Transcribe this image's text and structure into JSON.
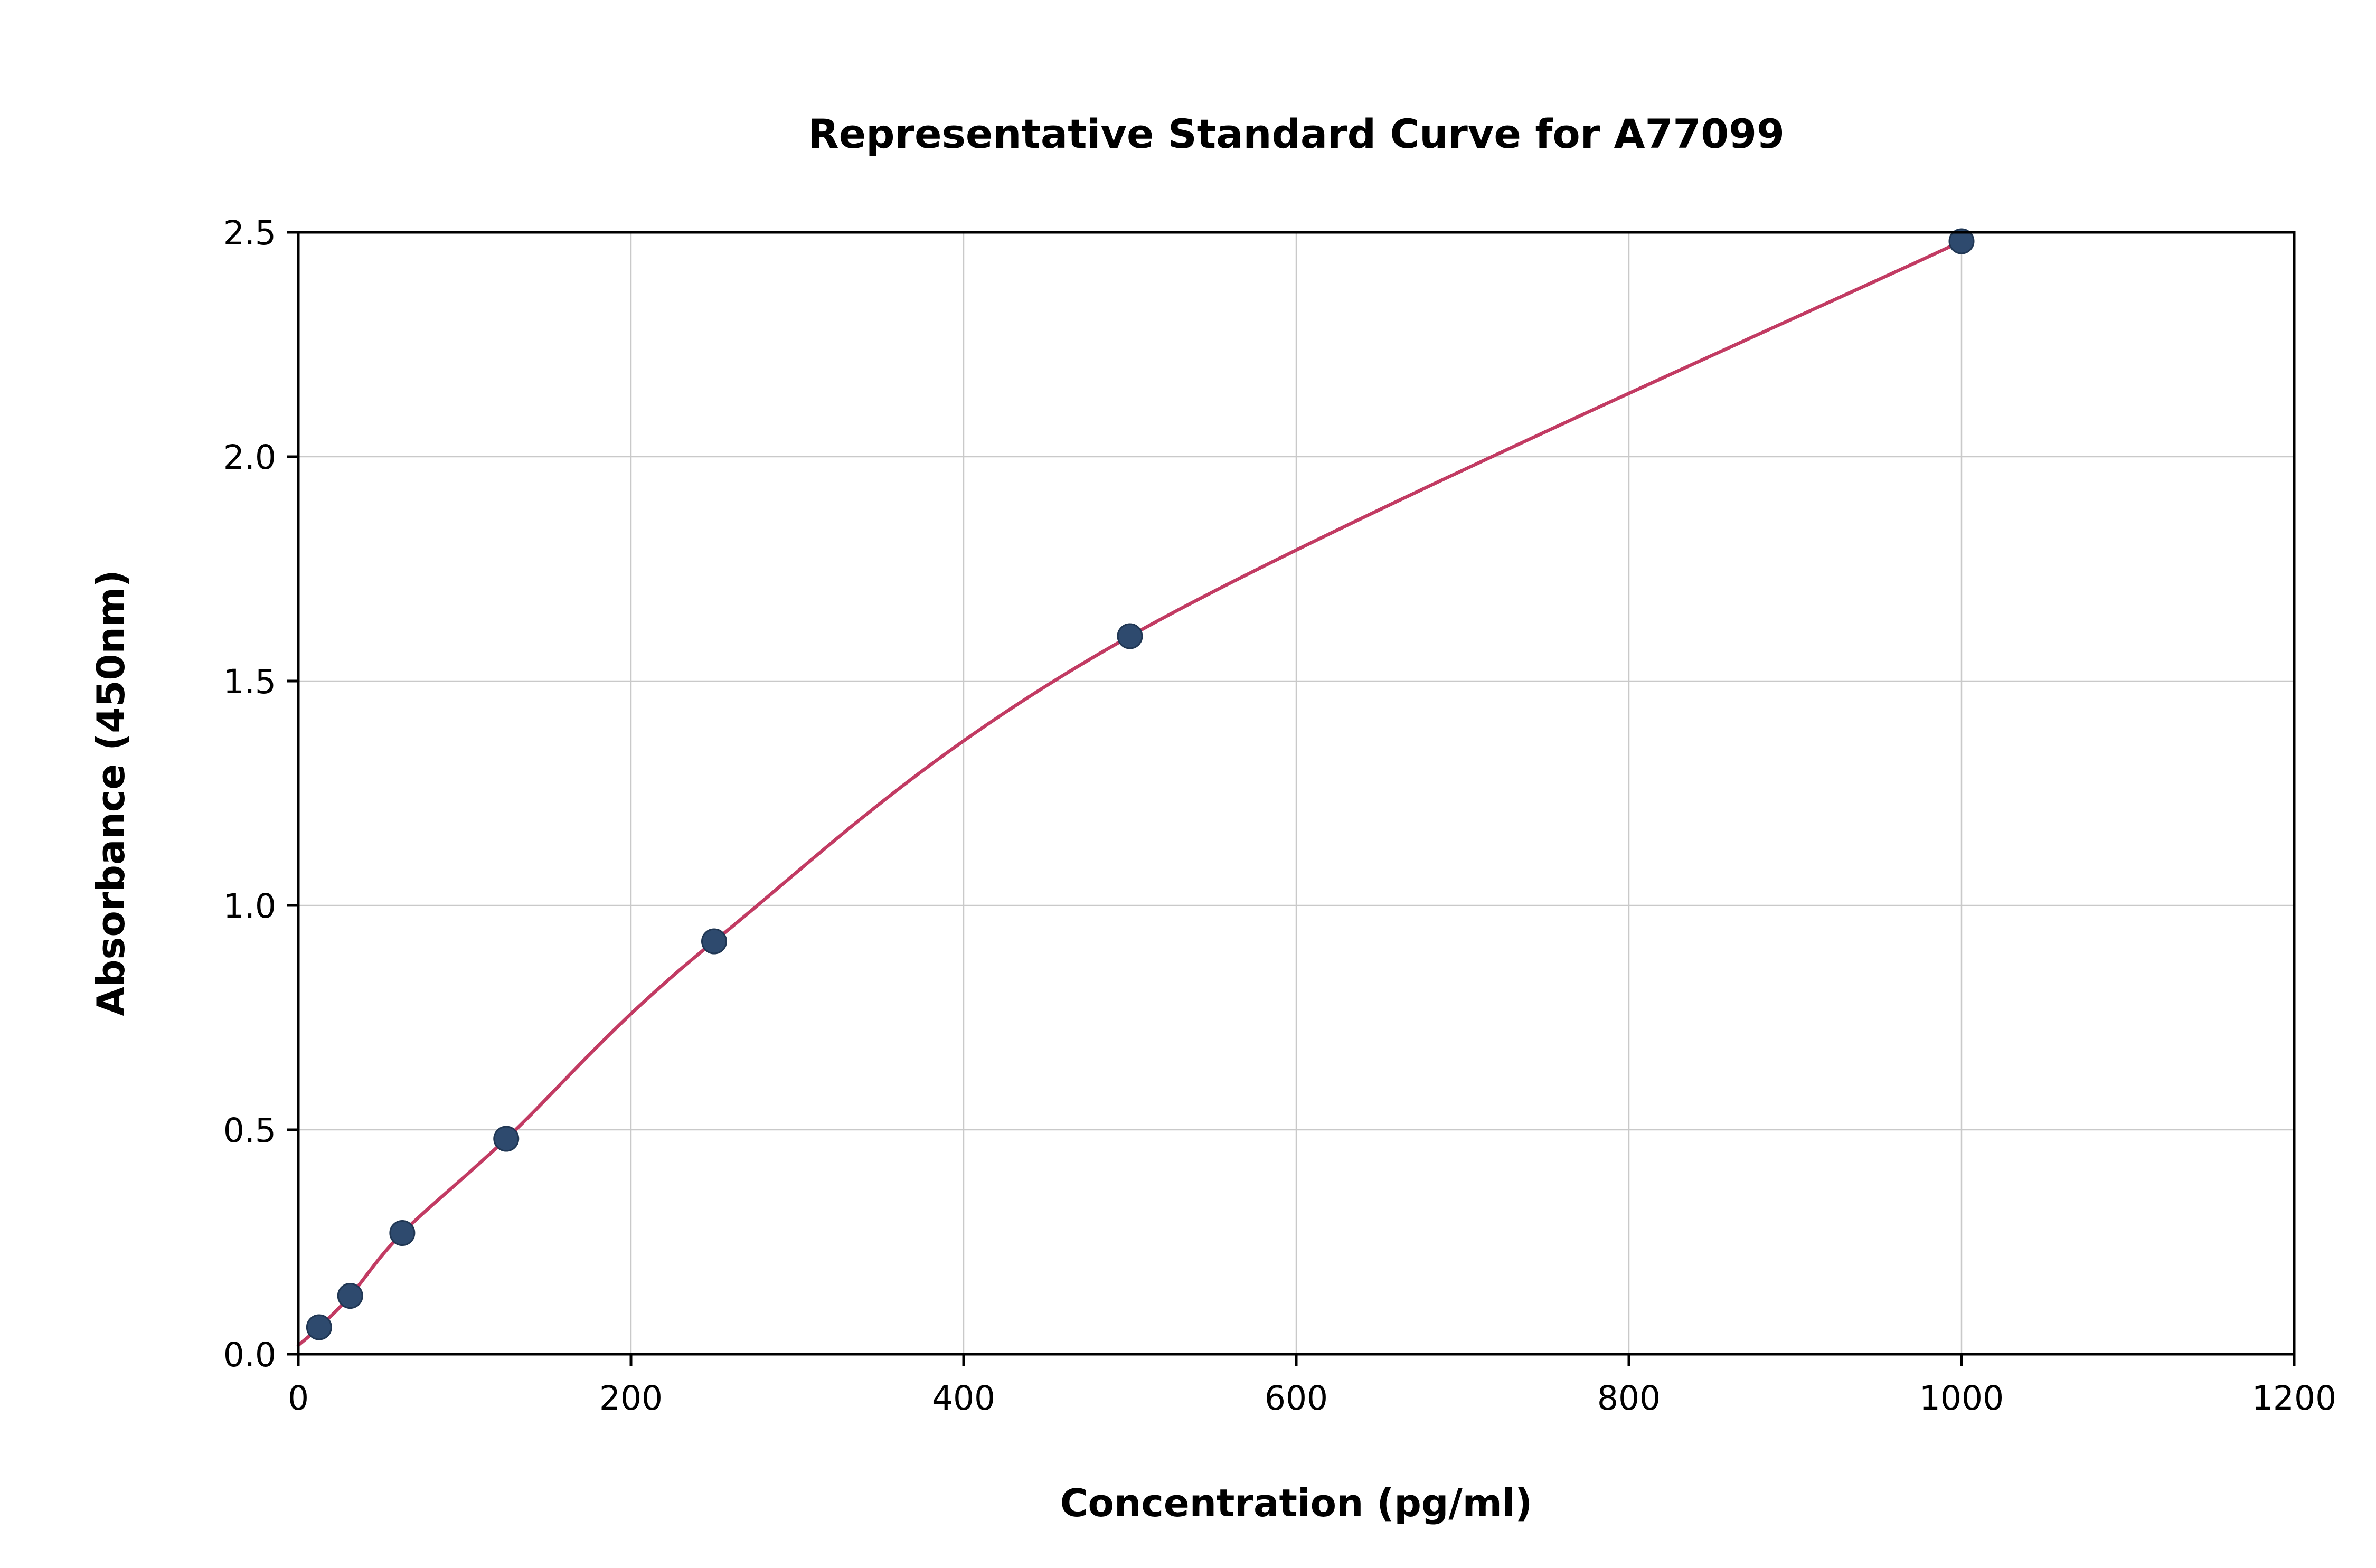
{
  "chart_data": {
    "type": "scatter",
    "title": "Representative Standard Curve for A77099",
    "xlabel": "Concentration (pg/ml)",
    "ylabel": "Absorbance (450nm)",
    "xlim": [
      0,
      1200
    ],
    "ylim": [
      0,
      2.5
    ],
    "grid": true,
    "legend": "none",
    "x_ticks": [
      0,
      200,
      400,
      600,
      800,
      1000,
      1200
    ],
    "x_tick_labels": [
      "0",
      "200",
      "400",
      "600",
      "800",
      "1000",
      "1200"
    ],
    "y_ticks": [
      0,
      0.5,
      1.0,
      1.5,
      2.0,
      2.5
    ],
    "y_tick_labels": [
      "0.0",
      "0.5",
      "1.0",
      "1.5",
      "2.0",
      "2.5"
    ],
    "points": [
      {
        "x": 12.5,
        "y": 0.06
      },
      {
        "x": 31.2,
        "y": 0.13
      },
      {
        "x": 62.5,
        "y": 0.27
      },
      {
        "x": 125,
        "y": 0.48
      },
      {
        "x": 250,
        "y": 0.92
      },
      {
        "x": 500,
        "y": 1.6
      },
      {
        "x": 1000,
        "y": 2.48
      }
    ],
    "curve_start": {
      "x": 0,
      "y": 0.02
    },
    "colors": {
      "marker": "#2e4a6e",
      "marker_edge": "#203754",
      "line": "#c23b63",
      "grid": "#c9c9c9",
      "axis": "#000000",
      "background": "#ffffff"
    }
  }
}
